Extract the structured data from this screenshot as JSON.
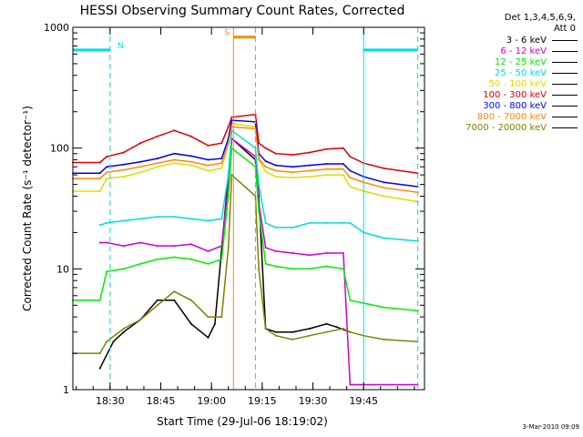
{
  "chart_data": {
    "type": "line",
    "title": "HESSI Observing Summary Count Rates, Corrected",
    "xlabel": "Start Time (29-Jul-06 18:19:02)",
    "ylabel": "Corrected Count Rate (s⁻¹ detector⁻¹)",
    "y_scale": "log",
    "ylim": [
      1,
      1000
    ],
    "xlim_minutes_after_1819": [
      0,
      104
    ],
    "x_ticks": [
      {
        "label": "18:30",
        "value": 11
      },
      {
        "label": "18:45",
        "value": 26
      },
      {
        "label": "19:00",
        "value": 41
      },
      {
        "label": "19:15",
        "value": 56
      },
      {
        "label": "19:30",
        "value": 71
      },
      {
        "label": "19:45",
        "value": 86
      }
    ],
    "y_ticks": [
      {
        "label": "1",
        "value": 1
      },
      {
        "label": "10",
        "value": 10
      },
      {
        "label": "100",
        "value": 100
      },
      {
        "label": "1000",
        "value": 1000
      }
    ],
    "legend_header": [
      "Det 1,3,4,5,6,9,",
      "Att 0"
    ],
    "legend_position": "right",
    "series": [
      {
        "name": "3 - 6 keV",
        "color": "#000000",
        "x": [
          8,
          12,
          15,
          20,
          25,
          30,
          35,
          40,
          42,
          46,
          47,
          54,
          55,
          57,
          60,
          65,
          70,
          75,
          78,
          82
        ],
        "y": [
          1.5,
          2.5,
          3.0,
          3.8,
          5.5,
          5.5,
          3.5,
          2.7,
          3.5,
          60,
          120,
          80,
          40,
          3.2,
          3.0,
          3.0,
          3.2,
          3.5,
          3.3,
          3.0
        ]
      },
      {
        "name": "6 - 12 keV",
        "color": "#cc00cc",
        "x": [
          8,
          10,
          15,
          20,
          25,
          30,
          35,
          40,
          44,
          46,
          47,
          54,
          55,
          57,
          60,
          65,
          70,
          75,
          80,
          82,
          83,
          86,
          92,
          102
        ],
        "y": [
          16.5,
          16.5,
          15.5,
          16.5,
          15.5,
          15.5,
          16,
          14,
          15.5,
          50,
          120,
          85,
          35,
          15,
          14,
          13.5,
          13,
          13.5,
          13.5,
          1.1,
          1.1,
          1.1,
          1.1,
          1.1
        ]
      },
      {
        "name": "12 - 25 keV",
        "color": "#00ee00",
        "x": [
          0,
          8,
          10,
          15,
          20,
          25,
          30,
          35,
          40,
          44,
          46,
          47,
          54,
          55,
          57,
          60,
          65,
          70,
          75,
          80,
          82,
          86,
          92,
          102
        ],
        "y": [
          5.5,
          5.5,
          9.5,
          10,
          11,
          12,
          12.5,
          12,
          11,
          12,
          40,
          100,
          70,
          30,
          11,
          10.5,
          10,
          10,
          10.5,
          10,
          5.5,
          5.2,
          4.8,
          4.5
        ]
      },
      {
        "name": "25 - 50 keV",
        "color": "#00dddd",
        "x": [
          8,
          10,
          15,
          20,
          25,
          30,
          35,
          40,
          44,
          46,
          47,
          54,
          55,
          57,
          60,
          65,
          70,
          75,
          80,
          82,
          86,
          92,
          102
        ],
        "y": [
          23,
          24,
          25,
          26,
          27,
          27,
          26,
          25,
          26,
          60,
          140,
          100,
          50,
          24,
          22,
          22,
          24,
          24,
          24,
          24,
          20,
          18,
          17
        ]
      },
      {
        "name": "50 - 100 keV",
        "color": "#dddd00",
        "x": [
          0,
          8,
          10,
          15,
          20,
          25,
          30,
          35,
          40,
          44,
          46,
          47,
          54,
          55,
          57,
          60,
          65,
          70,
          75,
          80,
          82,
          86,
          92,
          102
        ],
        "y": [
          44,
          44,
          56,
          58,
          63,
          70,
          75,
          72,
          65,
          68,
          110,
          160,
          150,
          80,
          64,
          58,
          57,
          58,
          60,
          60,
          48,
          44,
          40,
          36
        ]
      },
      {
        "name": "100 - 300 keV",
        "color": "#dd0000",
        "x": [
          0,
          8,
          10,
          15,
          20,
          25,
          30,
          35,
          40,
          44,
          46,
          47,
          54,
          55,
          57,
          60,
          65,
          70,
          75,
          80,
          82,
          86,
          92,
          102
        ],
        "y": [
          76,
          76,
          85,
          92,
          110,
          125,
          140,
          125,
          105,
          110,
          150,
          180,
          190,
          110,
          100,
          90,
          88,
          92,
          98,
          100,
          85,
          75,
          68,
          62
        ]
      },
      {
        "name": "300 - 800 keV",
        "color": "#0000ee",
        "x": [
          0,
          8,
          10,
          15,
          20,
          25,
          30,
          35,
          40,
          44,
          46,
          47,
          54,
          55,
          57,
          60,
          65,
          70,
          75,
          80,
          82,
          86,
          92,
          102
        ],
        "y": [
          62,
          62,
          70,
          73,
          77,
          82,
          90,
          86,
          80,
          82,
          120,
          170,
          165,
          90,
          78,
          72,
          70,
          72,
          74,
          74,
          65,
          58,
          52,
          48
        ]
      },
      {
        "name": "800 - 7000 keV",
        "color": "#ff8800",
        "x": [
          0,
          8,
          10,
          15,
          20,
          25,
          30,
          35,
          40,
          44,
          46,
          47,
          54,
          55,
          57,
          60,
          65,
          70,
          75,
          80,
          82,
          86,
          92,
          102
        ],
        "y": [
          56,
          56,
          63,
          66,
          70,
          75,
          80,
          77,
          72,
          75,
          110,
          150,
          145,
          82,
          70,
          65,
          63,
          65,
          67,
          67,
          57,
          52,
          47,
          43
        ]
      },
      {
        "name": "7000 - 20000 keV",
        "color": "#808000",
        "x": [
          0,
          8,
          10,
          15,
          20,
          25,
          30,
          35,
          40,
          44,
          46,
          47,
          54,
          55,
          57,
          60,
          65,
          70,
          75,
          80,
          82,
          86,
          92,
          102
        ],
        "y": [
          2.0,
          2.0,
          2.5,
          3.2,
          3.8,
          5.0,
          6.5,
          5.5,
          4.0,
          4.0,
          15,
          60,
          40,
          10,
          3.2,
          2.8,
          2.6,
          2.8,
          3.0,
          3.2,
          3.0,
          2.8,
          2.6,
          2.5
        ]
      }
    ],
    "annotations": {
      "night_marker": {
        "label": "N",
        "color": "#00dddd",
        "intervals": [
          [
            0,
            11
          ],
          [
            86,
            102
          ]
        ],
        "level": 650
      },
      "saa_marker": {
        "label": "S",
        "color": "#ff8800",
        "intervals": [
          [
            47.5,
            54
          ]
        ],
        "level": 830
      }
    },
    "timestamp": "3-Mar-2010 09:09"
  }
}
